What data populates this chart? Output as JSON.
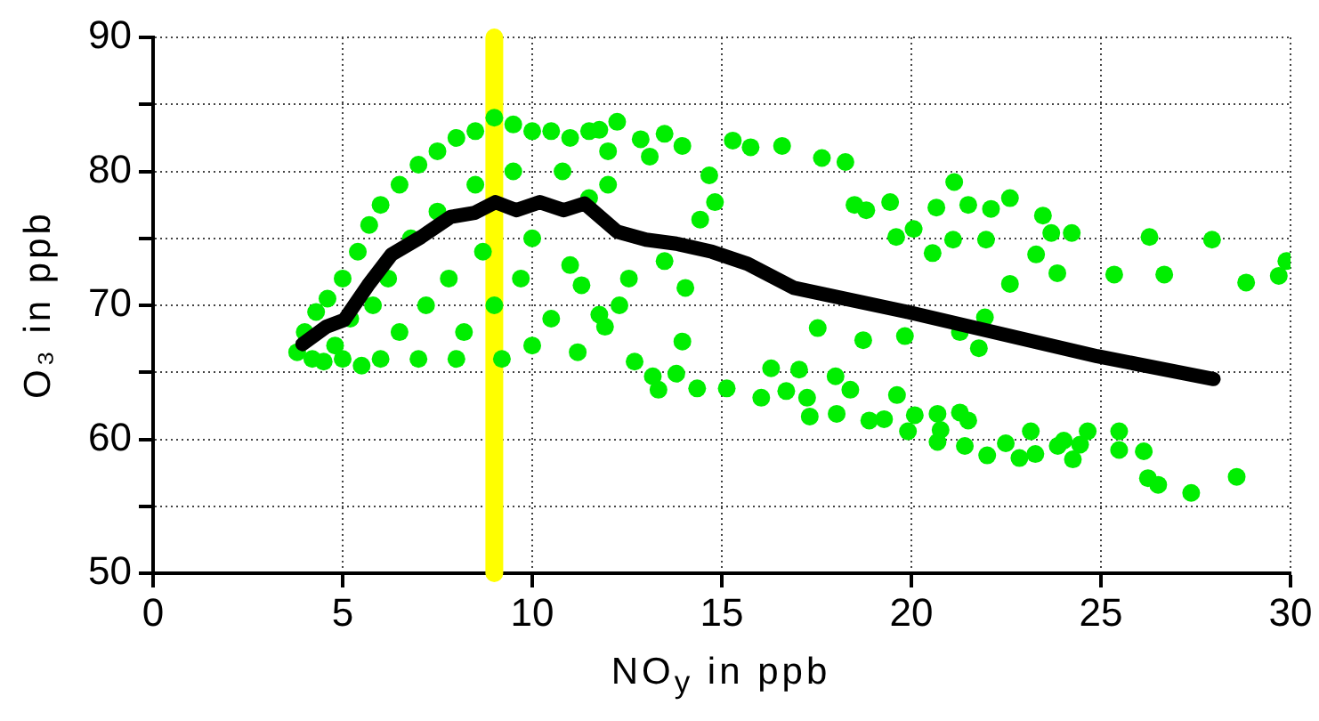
{
  "chart_data": {
    "type": "scatter",
    "xlabel": "NO$_{y}$ in ppb",
    "ylabel": "O₃ in ppb",
    "xlim": [
      0,
      30
    ],
    "ylim": [
      50,
      90
    ],
    "xticks": [
      0,
      5,
      10,
      15,
      20,
      25,
      30
    ],
    "yticks": [
      50,
      {
        "value": 55,
        "label": null
      },
      60,
      {
        "value": 65,
        "label": null
      },
      70,
      {
        "value": 75,
        "label": null
      },
      80,
      {
        "value": 85,
        "label": null
      },
      90
    ],
    "grid": true,
    "marker": "circle",
    "ref_lines": [
      {
        "axis": "x",
        "value": 9,
        "color": "#ffff00"
      }
    ],
    "series": [
      {
        "color": "#00ee00",
        "x": [
          3.8,
          4,
          4.2,
          4.3,
          4.5,
          4.6,
          4.8,
          5,
          5,
          5.2,
          5.4,
          5.5,
          5.7,
          5.8,
          6,
          6,
          6.2,
          6.5,
          6.5,
          6.8,
          7,
          7,
          7.2,
          7.5,
          7.5,
          7.8,
          8,
          8,
          8.2,
          8.5,
          8.5,
          8.7,
          9,
          9,
          9.2,
          9.5,
          9.5,
          9.7,
          10,
          10,
          10,
          10.5,
          10.5,
          10.8,
          11,
          11,
          11.2,
          11.5,
          11.5,
          12,
          12,
          12.3,
          12.24,
          11.77,
          12.86,
          13.49,
          13.96,
          14.67,
          13.1,
          14.43,
          14.82,
          13.33,
          14.35,
          13.18,
          11.92,
          12.7,
          13.96,
          13.8,
          12.55,
          13.49,
          14.04,
          11.3,
          11.77,
          15.29,
          15.76,
          16.59,
          17.64,
          18.26,
          21.13,
          22.6,
          20.66,
          21.5,
          22.1,
          23.47,
          23.69,
          24.23,
          26.28,
          27.93,
          25.35,
          26.67,
          28.83,
          29.69,
          29.89,
          21.1,
          21.97,
          23.29,
          23.85,
          22.6,
          20.56,
          21.94,
          21.28,
          21.78,
          19.83,
          18.73,
          20.06,
          19.6,
          19.44,
          18.81,
          18.5,
          19.91,
          20.09,
          20.69,
          20.77,
          20.69,
          21.28,
          21.5,
          21.41,
          22,
          22.49,
          22.85,
          23.15,
          23.27,
          23.86,
          24.02,
          24.26,
          24.45,
          24.65,
          25.48,
          25.48,
          26.13,
          26.24,
          26.51,
          27.38,
          28.58,
          16.04,
          16.7,
          17.25,
          17.32,
          18,
          18.03,
          18.39,
          18.89,
          19.28,
          19.62,
          17.04,
          17.53,
          16.3,
          15.13
        ],
        "values": [
          66.5,
          68,
          66,
          69.5,
          65.8,
          70.5,
          67,
          72,
          66,
          69,
          74,
          65.5,
          76,
          70,
          77.5,
          66,
          72,
          79,
          68,
          75,
          80.5,
          66,
          70,
          81.5,
          77,
          72,
          82.5,
          66,
          68,
          83,
          79,
          74,
          84,
          70,
          66,
          83.5,
          80,
          72,
          83,
          75,
          67,
          83,
          69,
          80,
          82.5,
          73,
          66.5,
          83,
          78,
          81.5,
          79,
          70,
          83.7,
          83.1,
          82.4,
          82.8,
          81.9,
          79.7,
          81.1,
          76.4,
          77.7,
          63.7,
          63.8,
          64.7,
          68.4,
          65.8,
          67.3,
          64.9,
          72,
          73.3,
          71.3,
          71.5,
          69.3,
          82.3,
          81.8,
          81.9,
          81,
          80.7,
          79.2,
          78,
          77.3,
          77.5,
          77.2,
          76.7,
          75.4,
          75.4,
          75.1,
          74.9,
          72.3,
          72.3,
          71.7,
          72.2,
          73.3,
          74.9,
          74.9,
          73.8,
          72.4,
          71.6,
          73.9,
          69.1,
          68,
          66.8,
          67.7,
          67.4,
          75.7,
          75.1,
          77.7,
          77.1,
          77.5,
          60.6,
          61.8,
          61.9,
          60.7,
          59.8,
          62,
          61.4,
          59.5,
          58.8,
          59.7,
          58.6,
          60.6,
          58.9,
          59.5,
          59.9,
          58.5,
          59.6,
          60.6,
          60.6,
          59.2,
          59.1,
          57.1,
          56.6,
          56,
          57.2,
          63.1,
          63.6,
          63.1,
          61.7,
          64.7,
          61.9,
          63.7,
          61.4,
          61.5,
          63.3,
          65.2,
          68.3,
          65.3,
          63.8
        ]
      },
      {
        "type": "line",
        "color": "#000000",
        "marker": "none",
        "x": [
          3.94,
          4.57,
          5.04,
          5.67,
          6.29,
          7.07,
          7.85,
          8.48,
          9.03,
          9.58,
          10.2,
          10.83,
          11.38,
          12.24,
          13,
          13.8,
          14.74,
          15.68,
          16.9,
          19.9,
          24.9,
          27.97
        ],
        "values": [
          67.1,
          68.4,
          68.9,
          71.5,
          73.8,
          75.1,
          76.6,
          76.9,
          77.7,
          77.1,
          77.7,
          77.1,
          77.6,
          75.5,
          74.9,
          74.6,
          74,
          73.1,
          71.3,
          69.5,
          66.2,
          64.5
        ]
      }
    ]
  }
}
